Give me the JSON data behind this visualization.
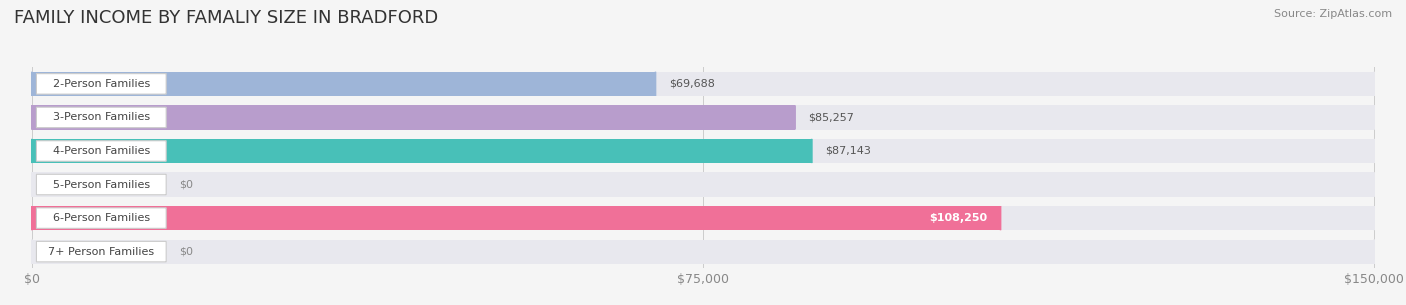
{
  "title": "FAMILY INCOME BY FAMALIY SIZE IN BRADFORD",
  "source": "Source: ZipAtlas.com",
  "categories": [
    "2-Person Families",
    "3-Person Families",
    "4-Person Families",
    "5-Person Families",
    "6-Person Families",
    "7+ Person Families"
  ],
  "values": [
    69688,
    85257,
    87143,
    0,
    108250,
    0
  ],
  "bar_colors": [
    "#9eb5d8",
    "#b89dcc",
    "#48c0b8",
    "#b0b4e8",
    "#f07098",
    "#f5c898"
  ],
  "bar_bg_color": "#e8e8ee",
  "xlim_max": 150000,
  "xticks": [
    0,
    75000,
    150000
  ],
  "xtick_labels": [
    "$0",
    "$75,000",
    "$150,000"
  ],
  "background_color": "#f5f5f5",
  "title_fontsize": 13,
  "source_fontsize": 8,
  "bar_label_fontsize": 8,
  "value_fontsize": 8
}
